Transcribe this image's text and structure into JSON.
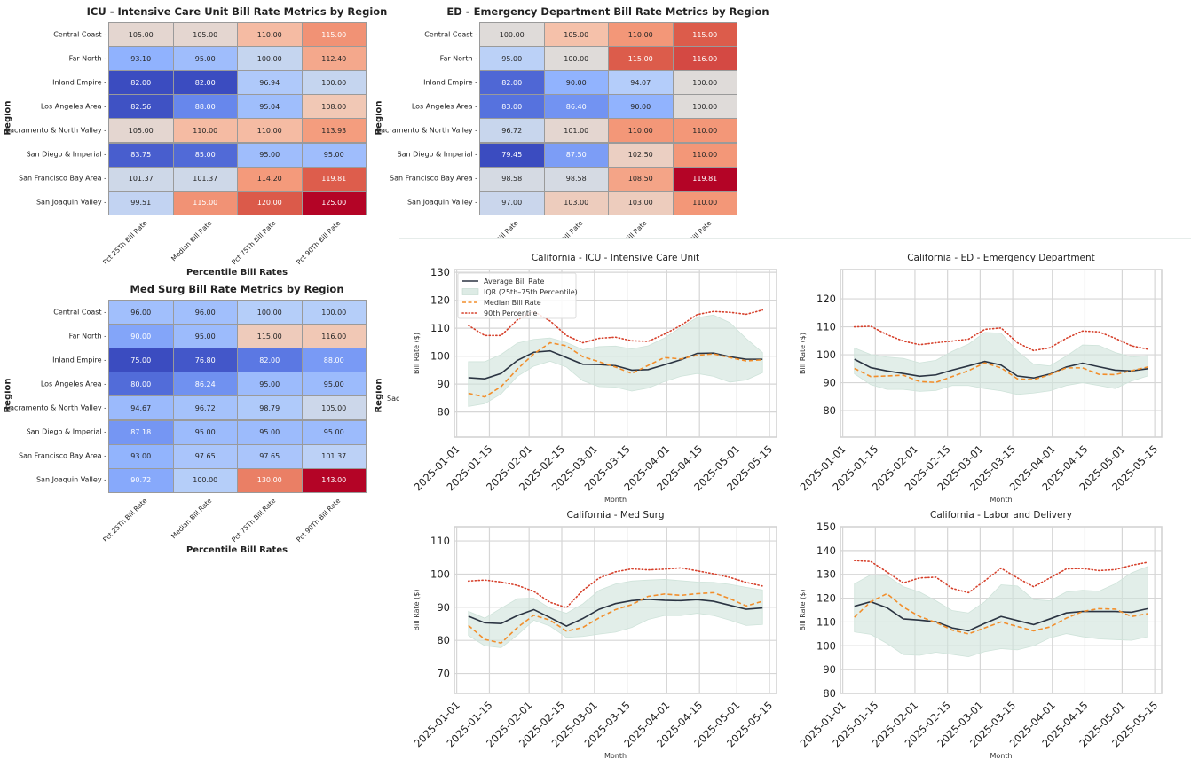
{
  "heatmap_columns": [
    "Pct 25Th Bill Rate",
    "Median Bill Rate",
    "Pct 75Th Bill Rate",
    "Pct 90Th Bill Rate"
  ],
  "heatmap_rows": [
    "Central Coast",
    "Far North",
    "Inland Empire",
    "Los Angeles Area",
    "Sacramento & North Valley",
    "San Diego & Imperial",
    "San Francisco Bay Area",
    "San Joaquin Valley"
  ],
  "hidden_heatmap": {
    "ylabel": "Region",
    "row_label": "Sac"
  },
  "colormap": "coolwarm",
  "line_colors": {
    "average": "#2b3442",
    "iqr": "#cfe3da",
    "median": "#f28e2b",
    "p90": "#d6402b"
  },
  "chart_data": [
    {
      "type": "heatmap",
      "title": "ICU - Intensive Care Unit Bill Rate Metrics by Region",
      "xlabel": "Percentile Bill Rates",
      "ylabel": "Region",
      "values": [
        [
          105.0,
          105.0,
          110.0,
          115.0
        ],
        [
          93.1,
          95.0,
          100.0,
          112.4
        ],
        [
          82.0,
          82.0,
          96.94,
          100.0
        ],
        [
          82.56,
          88.0,
          95.04,
          108.0
        ],
        [
          105.0,
          110.0,
          110.0,
          113.93
        ],
        [
          83.75,
          85.0,
          95.0,
          95.0
        ],
        [
          101.37,
          101.37,
          114.2,
          119.81
        ],
        [
          99.51,
          115.0,
          120.0,
          125.0
        ]
      ]
    },
    {
      "type": "heatmap",
      "title": "ED - Emergency Department Bill Rate Metrics by Region",
      "xlabel": "",
      "ylabel": "Region",
      "values": [
        [
          100.0,
          105.0,
          110.0,
          115.0
        ],
        [
          95.0,
          100.0,
          115.0,
          116.0
        ],
        [
          82.0,
          90.0,
          94.07,
          100.0
        ],
        [
          83.0,
          86.4,
          90.0,
          100.0
        ],
        [
          96.72,
          101.0,
          110.0,
          110.0
        ],
        [
          79.45,
          87.5,
          102.5,
          110.0
        ],
        [
          98.58,
          98.58,
          108.5,
          119.81
        ],
        [
          97.0,
          103.0,
          103.0,
          110.0
        ]
      ]
    },
    {
      "type": "heatmap",
      "title": "Med Surg Bill Rate Metrics by Region",
      "xlabel": "Percentile Bill Rates",
      "ylabel": "Region",
      "values": [
        [
          96.0,
          96.0,
          100.0,
          100.0
        ],
        [
          90.0,
          95.0,
          115.0,
          116.0
        ],
        [
          75.0,
          76.8,
          82.0,
          88.0
        ],
        [
          80.0,
          86.24,
          95.0,
          95.0
        ],
        [
          94.67,
          96.72,
          98.79,
          105.0
        ],
        [
          87.18,
          95.0,
          95.0,
          95.0
        ],
        [
          93.0,
          97.65,
          97.65,
          101.37
        ],
        [
          90.72,
          100.0,
          130.0,
          143.0
        ]
      ]
    },
    {
      "type": "line",
      "title": "California - ICU - Intensive Care Unit",
      "xlabel": "Month",
      "ylabel": "Bill Rate ($)",
      "ylim": [
        71,
        131
      ],
      "yticks": [
        80,
        90,
        100,
        110,
        120,
        130
      ],
      "legend": "top-left",
      "series": [
        {
          "name": "Average Bill Rate",
          "values": [
            92.3,
            91.9,
            93.8,
            98.5,
            101.4,
            101.9,
            99.5,
            97.1,
            97.0,
            96.6,
            95.0,
            95.2,
            96.9,
            98.7,
            101.0,
            101.1,
            99.8,
            98.9,
            98.9
          ]
        },
        {
          "name": "IQR (25th–75th Percentile)",
          "low": [
            82.0,
            83.0,
            86.5,
            92.8,
            96.4,
            98.2,
            96.1,
            91.2,
            89.1,
            88.9,
            87.5,
            88.6,
            90.9,
            92.8,
            93.8,
            92.8,
            90.7,
            91.5,
            94.1
          ],
          "high": [
            98.0,
            98.0,
            100.6,
            104.7,
            106.0,
            106.5,
            104.9,
            102.3,
            103.4,
            103.6,
            102.6,
            103.7,
            106.5,
            110.3,
            113.8,
            114.7,
            112.0,
            106.3,
            101.3
          ]
        },
        {
          "name": "Median Bill Rate",
          "values": [
            86.7,
            85.4,
            89.1,
            95.4,
            100.8,
            104.8,
            103.7,
            99.8,
            98.0,
            96.1,
            93.8,
            96.7,
            99.5,
            99.0,
            100.3,
            100.8,
            99.5,
            98.3,
            98.7
          ]
        },
        {
          "name": "90th Percentile",
          "values": [
            111.0,
            107.4,
            107.4,
            113.0,
            116.0,
            112.6,
            107.4,
            104.8,
            106.4,
            106.8,
            105.5,
            105.3,
            107.9,
            111.0,
            114.9,
            116.0,
            115.7,
            115.0,
            116.5
          ]
        }
      ]
    },
    {
      "type": "line",
      "title": "California - ED - Emergency Department",
      "xlabel": "Month",
      "ylabel": "Bill Rate ($)",
      "ylim": [
        70.5,
        130.5
      ],
      "yticks": [
        80,
        90,
        100,
        110,
        120
      ],
      "series": [
        {
          "name": "Average Bill Rate",
          "values": [
            98.4,
            95.4,
            94.2,
            93.3,
            92.3,
            92.8,
            94.5,
            96.0,
            97.6,
            96.3,
            92.4,
            91.7,
            93.1,
            95.6,
            97.0,
            95.7,
            94.5,
            94.2,
            95.0
          ]
        },
        {
          "name": "IQR (25th–75th Percentile)",
          "low": [
            93.2,
            89.3,
            87.6,
            87.6,
            86.9,
            87.2,
            89.0,
            89.0,
            87.9,
            87.1,
            85.8,
            86.3,
            87.1,
            89.0,
            90.0,
            89.0,
            87.9,
            90.6,
            92.4
          ],
          "high": [
            102.4,
            100.1,
            99.2,
            98.7,
            97.1,
            98.0,
            101.2,
            103.8,
            108.0,
            107.7,
            101.2,
            96.6,
            96.0,
            99.5,
            103.5,
            103.3,
            100.8,
            99.2,
            99.7
          ]
        },
        {
          "name": "Median Bill Rate",
          "values": [
            95.1,
            92.2,
            92.4,
            92.7,
            90.4,
            90.1,
            92.2,
            94.3,
            97.1,
            95.3,
            91.4,
            91.1,
            92.9,
            95.3,
            95.3,
            93.0,
            92.9,
            94.3,
            95.6
          ]
        },
        {
          "name": "90th Percentile",
          "values": [
            110.0,
            110.2,
            107.2,
            104.9,
            103.6,
            104.3,
            104.9,
            105.6,
            109.1,
            109.6,
            104.3,
            101.5,
            102.5,
            105.9,
            108.5,
            108.2,
            105.9,
            103.2,
            102.0
          ]
        }
      ]
    },
    {
      "type": "line",
      "title": "California - Med Surg",
      "xlabel": "Month",
      "ylabel": "Bill Rate ($)",
      "ylim": [
        64,
        114.3
      ],
      "yticks": [
        70,
        80,
        90,
        100,
        110
      ],
      "series": [
        {
          "name": "Average Bill Rate",
          "values": [
            87.3,
            85.3,
            85.1,
            87.5,
            89.3,
            86.9,
            84.3,
            86.6,
            89.4,
            91.1,
            92.0,
            92.4,
            92.1,
            92.0,
            92.3,
            91.8,
            90.6,
            89.4,
            89.8
          ]
        },
        {
          "name": "IQR (25th–75th Percentile)",
          "low": [
            81.5,
            78.4,
            77.8,
            81.6,
            86.1,
            84.3,
            80.9,
            81.2,
            81.9,
            82.5,
            83.9,
            86.3,
            87.5,
            87.5,
            88.2,
            87.5,
            86.1,
            84.5,
            84.8
          ],
          "high": [
            88.8,
            86.7,
            89.7,
            92.6,
            92.8,
            89.7,
            88.2,
            91.0,
            95.1,
            97.0,
            97.9,
            98.2,
            98.4,
            98.0,
            97.6,
            97.5,
            96.9,
            96.0,
            95.2
          ]
        },
        {
          "name": "Median Bill Rate",
          "values": [
            84.5,
            80.3,
            79.2,
            83.9,
            87.6,
            86.1,
            82.8,
            83.9,
            86.8,
            89.3,
            90.8,
            93.3,
            94.0,
            93.6,
            94.1,
            94.4,
            92.6,
            90.4,
            91.8
          ]
        },
        {
          "name": "90th Percentile",
          "values": [
            97.9,
            98.2,
            97.6,
            96.6,
            94.8,
            91.5,
            89.9,
            95.1,
            98.8,
            100.7,
            101.6,
            101.3,
            101.5,
            101.9,
            101.0,
            100.1,
            99.0,
            97.5,
            96.4
          ]
        }
      ]
    },
    {
      "type": "line",
      "title": "California - Labor and Delivery",
      "xlabel": "Month",
      "ylabel": "Bill Rate ($)",
      "ylim": [
        80,
        150
      ],
      "yticks": [
        80,
        90,
        100,
        110,
        120,
        130,
        140,
        150
      ],
      "series": [
        {
          "name": "Average Bill Rate",
          "values": [
            116.6,
            118.5,
            116.0,
            111.3,
            110.8,
            110.1,
            107.5,
            106.3,
            109.4,
            112.3,
            110.6,
            108.9,
            111.3,
            113.8,
            114.4,
            114.4,
            114.4,
            114.1,
            115.6
          ]
        },
        {
          "name": "IQR (25th–75th Percentile)",
          "low": [
            105.8,
            104.8,
            101.0,
            96.3,
            96.0,
            97.3,
            96.4,
            95.4,
            97.6,
            98.8,
            98.3,
            100.0,
            103.3,
            105.1,
            103.8,
            102.9,
            102.6,
            102.3,
            103.8
          ],
          "high": [
            126.0,
            129.8,
            129.4,
            124.8,
            122.6,
            118.9,
            114.8,
            113.8,
            118.5,
            125.6,
            125.1,
            119.4,
            118.9,
            122.6,
            123.3,
            122.9,
            126.0,
            130.6,
            133.3
          ]
        },
        {
          "name": "Median Bill Rate",
          "values": [
            112.0,
            118.5,
            121.9,
            116.3,
            112.3,
            109.8,
            106.6,
            105.0,
            107.5,
            110.0,
            108.1,
            106.3,
            107.9,
            111.6,
            114.4,
            115.6,
            115.4,
            112.3,
            113.5
          ]
        },
        {
          "name": "90th Percentile",
          "values": [
            135.8,
            135.4,
            131.0,
            126.4,
            128.5,
            128.8,
            124.1,
            122.3,
            127.3,
            132.6,
            128.5,
            124.8,
            128.5,
            132.3,
            132.5,
            131.6,
            132.0,
            133.8,
            135.1
          ]
        }
      ]
    }
  ],
  "line_dates": [
    "2025-01-06",
    "2025-01-13",
    "2025-01-20",
    "2025-01-27",
    "2025-02-03",
    "2025-02-10",
    "2025-02-17",
    "2025-02-24",
    "2025-03-03",
    "2025-03-10",
    "2025-03-17",
    "2025-03-24",
    "2025-03-31",
    "2025-04-07",
    "2025-04-14",
    "2025-04-21",
    "2025-04-28",
    "2025-05-05",
    "2025-05-12"
  ],
  "line_xlim": [
    "2024-12-31",
    "2025-05-18"
  ],
  "line_xticks": [
    "2025-01-01",
    "2025-01-15",
    "2025-02-01",
    "2025-02-15",
    "2025-03-01",
    "2025-03-15",
    "2025-04-01",
    "2025-04-15",
    "2025-05-01",
    "2025-05-15"
  ]
}
